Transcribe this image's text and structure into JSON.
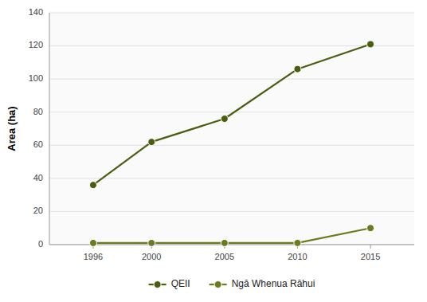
{
  "chart_data": {
    "type": "line",
    "ylabel": "Area (ha)",
    "x": [
      1996,
      2000,
      2005,
      2010,
      2015
    ],
    "series": [
      {
        "name": "QEII",
        "color": "#4a5e10",
        "marker": "circle",
        "values": [
          36,
          62,
          76,
          106,
          121
        ]
      },
      {
        "name": "Ngā Whenua Rāhui",
        "color": "#6b7c20",
        "marker": "circle",
        "values": [
          1,
          1,
          1,
          1,
          10
        ]
      }
    ],
    "xlim": [
      1993,
      2018
    ],
    "xticks": [
      1996,
      2000,
      2005,
      2010,
      2015
    ],
    "ylim": [
      0,
      140
    ],
    "yticks": [
      0,
      20,
      40,
      60,
      80,
      100,
      120,
      140
    ],
    "grid": true,
    "legend": "bottom"
  }
}
